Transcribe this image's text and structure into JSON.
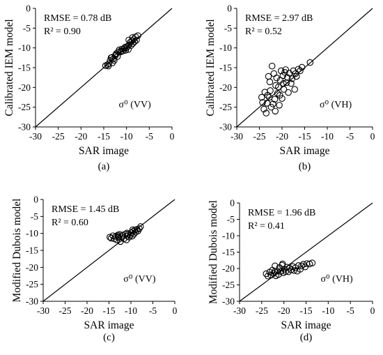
{
  "chart_data": [
    {
      "type": "scatter",
      "panel_label": "(a)",
      "xlabel": "SAR image",
      "ylabel": "Calibrated IEM model",
      "xlim": [
        -30,
        0
      ],
      "ylim": [
        -30,
        0
      ],
      "xticks": [
        "-30",
        "-25",
        "-20",
        "-15",
        "-10",
        "-5",
        "0"
      ],
      "yticks": [
        "0",
        "-5",
        "-10",
        "-15",
        "-20",
        "-25",
        "-30"
      ],
      "annotations": {
        "rmse": "RMSE = 0.78 dB",
        "r2": "R² = 0.90",
        "pol": "σ⁰ (VV)"
      },
      "reference_line": "1:1",
      "points": [
        [
          -14.6,
          -14.5
        ],
        [
          -14.2,
          -14.3
        ],
        [
          -13.9,
          -14.0
        ],
        [
          -13.6,
          -13.2
        ],
        [
          -13.4,
          -12.5
        ],
        [
          -13.1,
          -13.8
        ],
        [
          -12.9,
          -12.8
        ],
        [
          -12.7,
          -13.2
        ],
        [
          -12.5,
          -12.0
        ],
        [
          -12.2,
          -11.4
        ],
        [
          -12.0,
          -12.2
        ],
        [
          -11.8,
          -11.0
        ],
        [
          -11.6,
          -10.5
        ],
        [
          -11.3,
          -11.0
        ],
        [
          -11.0,
          -10.3
        ],
        [
          -10.8,
          -10.8
        ],
        [
          -10.5,
          -10.2
        ],
        [
          -10.2,
          -10.6
        ],
        [
          -10.0,
          -10.0
        ],
        [
          -9.8,
          -9.6
        ],
        [
          -9.6,
          -10.4
        ],
        [
          -9.4,
          -9.2
        ],
        [
          -9.2,
          -8.6
        ],
        [
          -9.0,
          -9.4
        ],
        [
          -8.8,
          -8.2
        ],
        [
          -8.6,
          -8.9
        ],
        [
          -8.4,
          -7.8
        ],
        [
          -8.2,
          -8.4
        ],
        [
          -8.0,
          -7.2
        ],
        [
          -7.8,
          -8.0
        ],
        [
          -7.5,
          -6.9
        ],
        [
          -9.5,
          -8.0
        ],
        [
          -10.3,
          -9.8
        ],
        [
          -11.2,
          -10.8
        ],
        [
          -12.4,
          -11.8
        ],
        [
          -13.2,
          -12.4
        ],
        [
          -14.0,
          -14.6
        ],
        [
          -8.7,
          -7.4
        ]
      ]
    },
    {
      "type": "scatter",
      "panel_label": "(b)",
      "xlabel": "SAR image",
      "ylabel": "Calibrated IEM model",
      "xlim": [
        -30,
        0
      ],
      "ylim": [
        -30,
        0
      ],
      "xticks": [
        "-30",
        "-25",
        "-20",
        "-15",
        "-10",
        "-5",
        "0"
      ],
      "yticks": [
        "0",
        "-5",
        "-10",
        "-15",
        "-20",
        "-25",
        "-30"
      ],
      "annotations": {
        "rmse": "RMSE = 2.97 dB",
        "r2": "R² =  0.52",
        "pol": "σ⁰ (VH)"
      },
      "reference_line": "1:1",
      "points": [
        [
          -24.5,
          -22.5
        ],
        [
          -24.3,
          -23.8
        ],
        [
          -24.0,
          -25.5
        ],
        [
          -23.8,
          -21.2
        ],
        [
          -23.5,
          -26.5
        ],
        [
          -23.3,
          -24.0
        ],
        [
          -23.0,
          -17.2
        ],
        [
          -22.8,
          -22.5
        ],
        [
          -22.6,
          -20.8
        ],
        [
          -22.4,
          -25.0
        ],
        [
          -22.2,
          -14.6
        ],
        [
          -22.0,
          -24.2
        ],
        [
          -21.8,
          -16.5
        ],
        [
          -21.6,
          -23.0
        ],
        [
          -21.4,
          -19.5
        ],
        [
          -21.2,
          -17.6
        ],
        [
          -21.0,
          -21.5
        ],
        [
          -20.8,
          -19.9
        ],
        [
          -20.6,
          -24.5
        ],
        [
          -20.4,
          -18.2
        ],
        [
          -20.2,
          -15.8
        ],
        [
          -20.0,
          -22.8
        ],
        [
          -19.8,
          -17.0
        ],
        [
          -19.6,
          -20.5
        ],
        [
          -19.4,
          -16.2
        ],
        [
          -19.2,
          -15.5
        ],
        [
          -19.0,
          -18.8
        ],
        [
          -18.8,
          -17.5
        ],
        [
          -18.6,
          -21.3
        ],
        [
          -18.4,
          -16.4
        ],
        [
          -18.0,
          -19.0
        ],
        [
          -17.8,
          -17.8
        ],
        [
          -17.5,
          -15.8
        ],
        [
          -17.2,
          -20.5
        ],
        [
          -17.0,
          -16.5
        ],
        [
          -16.8,
          -17.2
        ],
        [
          -16.4,
          -15.4
        ],
        [
          -16.0,
          -15.8
        ],
        [
          -15.6,
          -14.9
        ],
        [
          -13.8,
          -13.7
        ],
        [
          -22.7,
          -18.6
        ],
        [
          -21.5,
          -26.0
        ],
        [
          -20.5,
          -22.0
        ],
        [
          -19.7,
          -19.0
        ],
        [
          -23.2,
          -22.0
        ]
      ]
    },
    {
      "type": "scatter",
      "panel_label": "(c)",
      "xlabel": "SAR image",
      "ylabel": "Modified Dubois model",
      "xlim": [
        -30,
        0
      ],
      "ylim": [
        -30,
        0
      ],
      "xticks": [
        "-30",
        "-25",
        "-20",
        "-15",
        "-10",
        "-5",
        "0"
      ],
      "yticks": [
        "0",
        "-5",
        "-10",
        "-15",
        "-20",
        "-25",
        "-30"
      ],
      "annotations": {
        "rmse": "RMSE = 1.45 dB",
        "r2": "R² =  0.60",
        "pol": "σ⁰ (VV)"
      },
      "reference_line": "1:1",
      "points": [
        [
          -14.8,
          -11.1
        ],
        [
          -14.5,
          -11.4
        ],
        [
          -14.1,
          -10.7
        ],
        [
          -13.8,
          -11.6
        ],
        [
          -13.5,
          -10.9
        ],
        [
          -13.2,
          -11.9
        ],
        [
          -13.0,
          -10.5
        ],
        [
          -12.8,
          -11.2
        ],
        [
          -12.6,
          -10.3
        ],
        [
          -12.4,
          -12.4
        ],
        [
          -12.1,
          -11.0
        ],
        [
          -11.9,
          -10.5
        ],
        [
          -11.6,
          -11.6
        ],
        [
          -11.3,
          -10.2
        ],
        [
          -11.0,
          -11.9
        ],
        [
          -10.8,
          -10.8
        ],
        [
          -10.6,
          -10.2
        ],
        [
          -10.4,
          -11.1
        ],
        [
          -10.1,
          -10.5
        ],
        [
          -9.9,
          -9.8
        ],
        [
          -9.7,
          -10.8
        ],
        [
          -9.5,
          -9.4
        ],
        [
          -9.3,
          -10.2
        ],
        [
          -9.1,
          -9.0
        ],
        [
          -8.9,
          -9.6
        ],
        [
          -8.6,
          -8.8
        ],
        [
          -8.4,
          -9.3
        ],
        [
          -8.1,
          -8.6
        ],
        [
          -7.8,
          -8.0
        ],
        [
          -12.9,
          -10.9
        ],
        [
          -10.9,
          -9.9
        ],
        [
          -9.6,
          -8.9
        ]
      ]
    },
    {
      "type": "scatter",
      "panel_label": "(d)",
      "xlabel": "SAR image",
      "ylabel": "Modified Dubois model",
      "xlim": [
        -30,
        0
      ],
      "ylim": [
        -30,
        0
      ],
      "xticks": [
        "-30",
        "-25",
        "-20",
        "-15",
        "-10",
        "-5",
        "0"
      ],
      "yticks": [
        "0",
        "-5",
        "-10",
        "-15",
        "-20",
        "-25",
        "-30"
      ],
      "annotations": {
        "rmse": "RMSE = 1.96 dB",
        "r2": "R² =  0.41",
        "pol": "σ⁰ (VH)"
      },
      "reference_line": "1:1",
      "points": [
        [
          -24.0,
          -21.6
        ],
        [
          -23.6,
          -22.3
        ],
        [
          -23.2,
          -21.1
        ],
        [
          -22.9,
          -22.0
        ],
        [
          -22.6,
          -20.5
        ],
        [
          -22.3,
          -21.5
        ],
        [
          -22.0,
          -19.2
        ],
        [
          -21.8,
          -22.2
        ],
        [
          -21.5,
          -20.8
        ],
        [
          -21.2,
          -21.8
        ],
        [
          -21.0,
          -19.7
        ],
        [
          -20.7,
          -20.9
        ],
        [
          -20.4,
          -19.0
        ],
        [
          -20.1,
          -21.3
        ],
        [
          -19.9,
          -20.2
        ],
        [
          -19.6,
          -20.9
        ],
        [
          -19.3,
          -19.6
        ],
        [
          -19.0,
          -21.0
        ],
        [
          -18.7,
          -19.9
        ],
        [
          -18.4,
          -20.4
        ],
        [
          -18.0,
          -19.4
        ],
        [
          -17.7,
          -20.6
        ],
        [
          -17.4,
          -19.8
        ],
        [
          -17.0,
          -20.8
        ],
        [
          -16.7,
          -19.1
        ],
        [
          -16.3,
          -20.2
        ],
        [
          -16.0,
          -19.2
        ],
        [
          -15.6,
          -18.7
        ],
        [
          -15.2,
          -19.5
        ],
        [
          -14.8,
          -18.5
        ],
        [
          -14.2,
          -18.6
        ],
        [
          -13.6,
          -18.3
        ],
        [
          -22.1,
          -21.0
        ],
        [
          -20.3,
          -18.6
        ]
      ]
    }
  ]
}
